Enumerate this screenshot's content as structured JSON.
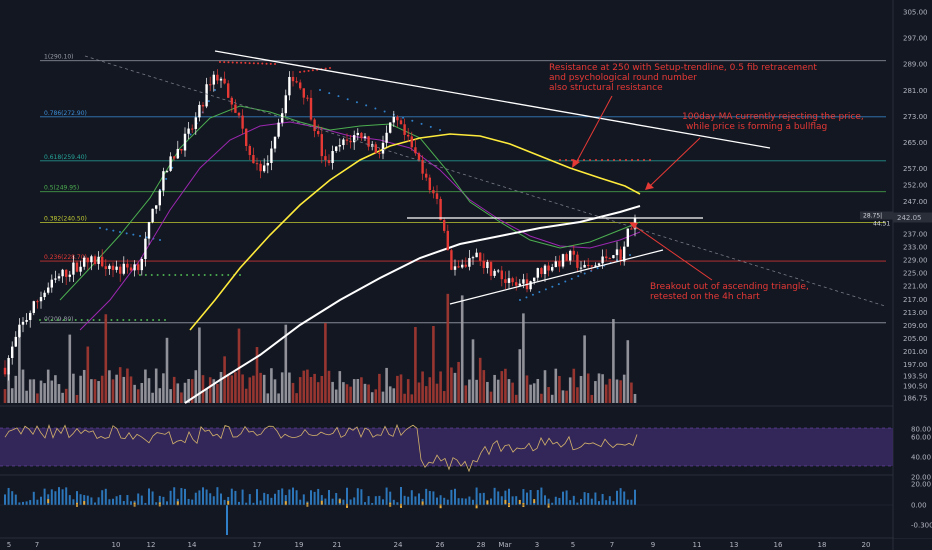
{
  "chart_data": {
    "type": "candlestick",
    "price_axis": {
      "ticks": [
        "305.00",
        "297.00",
        "289.00",
        "281.00",
        "273.00",
        "265.00",
        "257.00",
        "252.00",
        "247.00",
        "242.05",
        "237.00",
        "233.00",
        "229.00",
        "225.00",
        "221.00",
        "217.00",
        "213.00",
        "209.00",
        "205.00",
        "201.00",
        "197.00",
        "193.50",
        "190.50",
        "186.75"
      ],
      "current_price": "242.05",
      "tags": [
        "28.75|",
        "44.51"
      ]
    },
    "rsi_axis": {
      "ticks": [
        "80.00",
        "60.00",
        "40.00",
        "20.00"
      ]
    },
    "volume_osc_axis": {
      "ticks": [
        "20.00",
        "0.00",
        "-0.300"
      ]
    },
    "date_axis": {
      "ticks": [
        "5",
        "7",
        "10",
        "12",
        "14",
        "17",
        "19",
        "21",
        "24",
        "26",
        "28",
        "Mar",
        "3",
        "5",
        "7",
        "9",
        "11",
        "13",
        "16",
        "18",
        "20"
      ]
    },
    "fib_levels": [
      {
        "label": "1(290.10)",
        "value": 290.1,
        "color": "#9a9ea8"
      },
      {
        "label": "0.786(272.90)",
        "value": 272.9,
        "color": "#3d8fd6"
      },
      {
        "label": "0.618(259.40)",
        "value": 259.4,
        "color": "#26a69a"
      },
      {
        "label": "0.5(249.95)",
        "value": 249.95,
        "color": "#4caf50"
      },
      {
        "label": "0.382(240.50)",
        "value": 240.5,
        "color": "#c0ca33"
      },
      {
        "label": "0.236(228.70)",
        "value": 228.7,
        "color": "#e53935"
      },
      {
        "label": "0(209.80)",
        "value": 209.8,
        "color": "#9a9ea8"
      }
    ],
    "annotations": [
      {
        "id": "resistance",
        "lines": [
          "Resistance at 250 with Setup-trendline, 0.5 fib retracement",
          "and psychological round number",
          "also structural resistance"
        ]
      },
      {
        "id": "ma100",
        "lines": [
          "100day MA currently rejecting the price,",
          "while price is forming a bullflag"
        ]
      },
      {
        "id": "breakout",
        "lines": [
          "Breakout out of ascending triangle,",
          "retested on the 4h chart"
        ]
      }
    ],
    "colors": {
      "up": "#ffffff",
      "down": "#e53935",
      "ma100": "#ffeb3b",
      "ma_white": "#ffffff",
      "ma_green": "#4caf50",
      "ma_purple": "#9c27b0",
      "rsi_band": "#3a2a63",
      "rsi_line": "#d4b26a"
    }
  }
}
